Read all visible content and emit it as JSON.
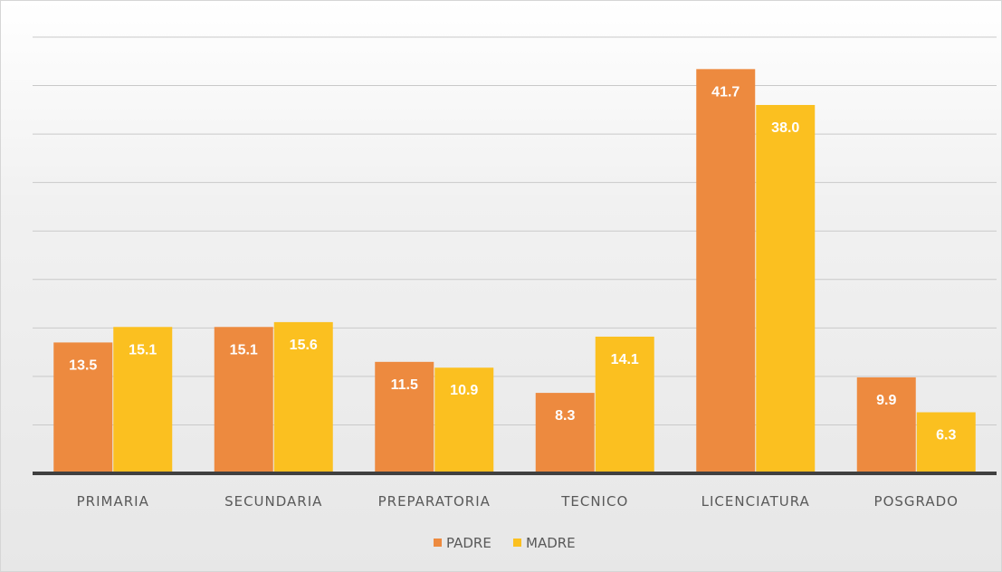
{
  "chart_data": {
    "type": "bar",
    "title": "",
    "xlabel": "",
    "ylabel": "",
    "categories": [
      "PRIMARIA",
      "SECUNDARIA",
      "PREPARATORIA",
      "TECNICO",
      "LICENCIATURA",
      "POSGRADO"
    ],
    "series": [
      {
        "name": "PADRE",
        "values": [
          13.5,
          15.1,
          11.5,
          8.3,
          41.7,
          9.9
        ],
        "color": "#ED8A3F"
      },
      {
        "name": "MADRE",
        "values": [
          15.1,
          15.6,
          10.9,
          14.1,
          38.0,
          6.3
        ],
        "color": "#FBC020"
      }
    ],
    "data_labels": [
      [
        "13.5",
        "15.1",
        "11.5",
        "8.3",
        "41.7",
        "9.9"
      ],
      [
        "15.1",
        "15.6",
        "10.9",
        "14.1",
        "38.0",
        "6.3"
      ]
    ],
    "ylim": [
      0,
      45
    ],
    "y_gridlines": 9,
    "y_axis_labels_shown": false,
    "grid": true,
    "legend": "bottom-center"
  }
}
